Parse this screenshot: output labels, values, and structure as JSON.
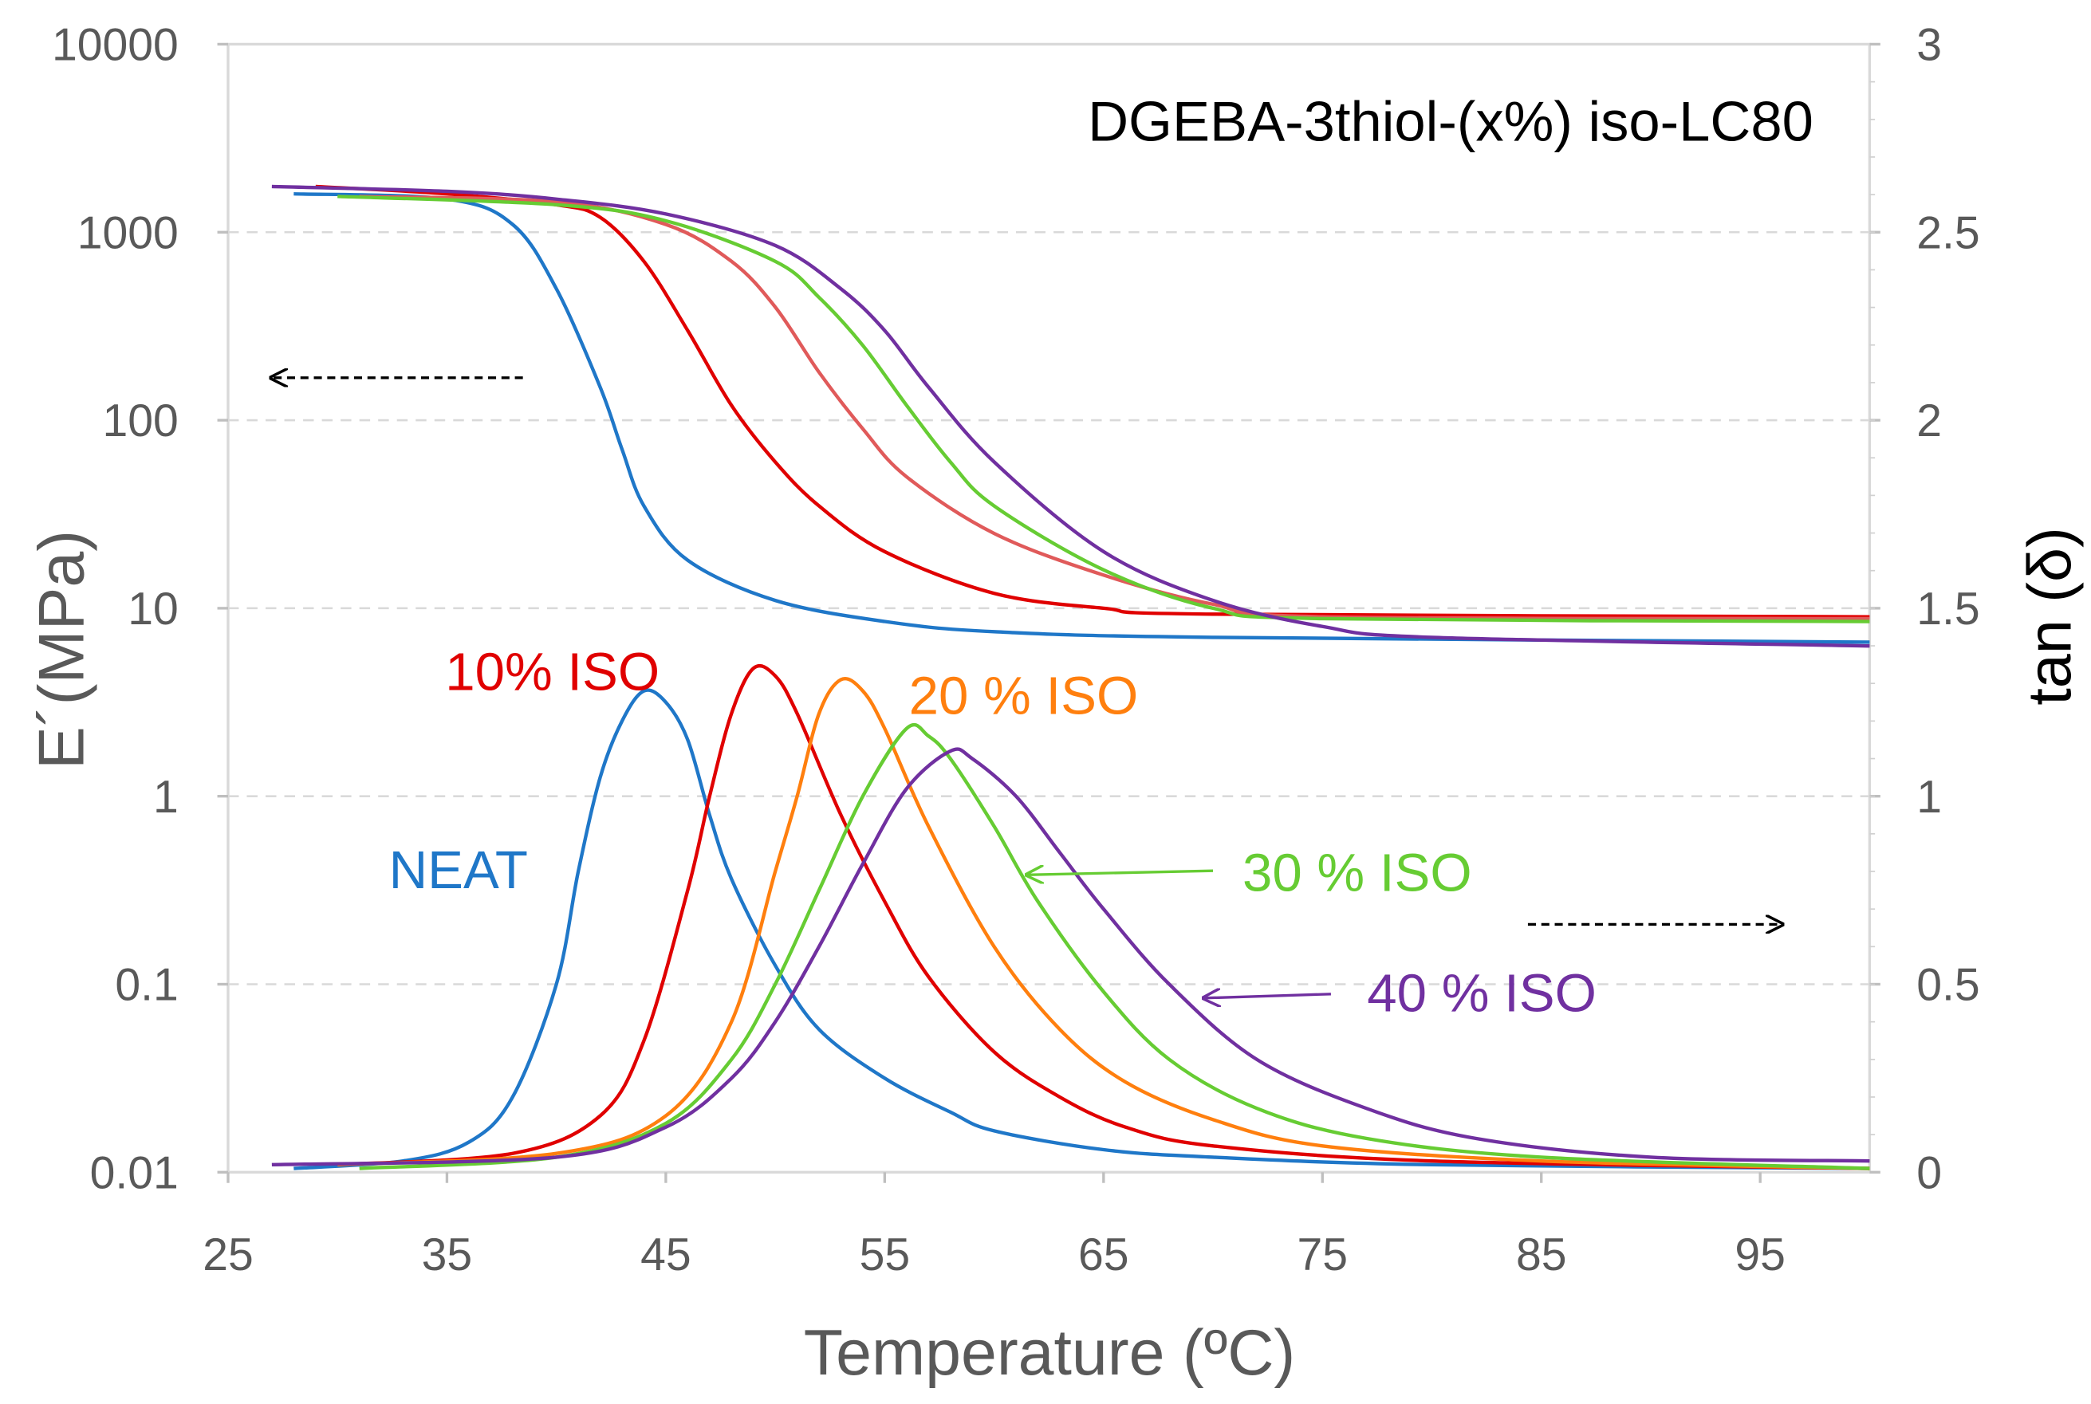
{
  "chart_data": {
    "type": "line",
    "title": "DGEBA-3thiol-(x%) iso-LC80",
    "xlabel": "Temperature (ºC)",
    "ylabel": "E´(MPa)",
    "y2label": "tan (δ)",
    "xlim": [
      25,
      100
    ],
    "ylim": [
      0.01,
      10000
    ],
    "yscale": "log",
    "y2lim": [
      0,
      3
    ],
    "grid": true,
    "xticks": [
      25,
      35,
      45,
      55,
      65,
      75,
      85,
      95
    ],
    "yticks": [
      "10000",
      "1000",
      "100",
      "10",
      "1",
      "0.1",
      "0.01"
    ],
    "y2ticks": [
      "3",
      "2.5",
      "2",
      "1.5",
      "1",
      "0.5",
      "0"
    ],
    "series": [
      {
        "name": "NEAT E'",
        "axis": "left",
        "color": "#1f77c8",
        "x": [
          28,
          35,
          38,
          40,
          42,
          43,
          44,
          46,
          50,
          55,
          60,
          70,
          100
        ],
        "y": [
          1600,
          1500,
          1100,
          500,
          150,
          70,
          35,
          18,
          11,
          8.5,
          7.5,
          7,
          6.6
        ]
      },
      {
        "name": "10% ISO E'",
        "axis": "left",
        "color": "#e00000",
        "x": [
          29,
          35,
          40,
          42,
          44,
          46,
          48,
          50,
          52,
          55,
          60,
          65,
          70,
          100
        ],
        "y": [
          1750,
          1600,
          1400,
          1200,
          700,
          300,
          120,
          60,
          35,
          20,
          12,
          10,
          9.3,
          9
        ]
      },
      {
        "name": "20% ISO E'",
        "axis": "left",
        "color": "#e05a5a",
        "x": [
          31,
          40,
          45,
          48,
          50,
          52,
          54,
          56,
          60,
          65,
          70,
          75,
          100
        ],
        "y": [
          1550,
          1450,
          1100,
          700,
          400,
          180,
          90,
          50,
          25,
          15,
          10.5,
          9,
          8.8
        ]
      },
      {
        "name": "30% ISO E'",
        "axis": "left",
        "color": "#66cc33",
        "x": [
          30,
          40,
          45,
          50,
          52,
          54,
          56,
          58,
          60,
          65,
          70,
          75,
          100
        ],
        "y": [
          1550,
          1400,
          1150,
          700,
          450,
          250,
          120,
          60,
          35,
          16,
          10,
          8.8,
          8.5
        ]
      },
      {
        "name": "40% ISO E'",
        "axis": "left",
        "color": "#7030a0",
        "x": [
          27,
          35,
          40,
          45,
          50,
          53,
          55,
          57,
          60,
          65,
          70,
          75,
          80,
          100
        ],
        "y": [
          1750,
          1650,
          1500,
          1250,
          850,
          500,
          300,
          150,
          60,
          20,
          11,
          8,
          7,
          6.3
        ]
      },
      {
        "name": "NEAT tan δ",
        "axis": "right",
        "color": "#1f77c8",
        "x": [
          28,
          33,
          36,
          38,
          40,
          41,
          42,
          43,
          44,
          45,
          46,
          47,
          48,
          50,
          52,
          55,
          58,
          60,
          65,
          70,
          80,
          100
        ],
        "y": [
          0.01,
          0.03,
          0.08,
          0.2,
          0.5,
          0.8,
          1.05,
          1.2,
          1.28,
          1.25,
          1.15,
          0.95,
          0.78,
          0.55,
          0.38,
          0.25,
          0.16,
          0.11,
          0.06,
          0.04,
          0.02,
          0.01
        ]
      },
      {
        "name": "10% ISO tan δ",
        "axis": "right",
        "color": "#e00000",
        "x": [
          30,
          38,
          42,
          44,
          46,
          47,
          48,
          49,
          50,
          51,
          53,
          55,
          57,
          60,
          63,
          66,
          70,
          80,
          100
        ],
        "y": [
          0.02,
          0.05,
          0.15,
          0.35,
          0.75,
          1.0,
          1.22,
          1.34,
          1.32,
          1.22,
          0.95,
          0.72,
          0.52,
          0.32,
          0.2,
          0.12,
          0.07,
          0.03,
          0.01
        ]
      },
      {
        "name": "20% ISO tan δ",
        "axis": "right",
        "color": "#ff7f0e",
        "x": [
          30,
          40,
          45,
          48,
          50,
          51,
          52,
          53,
          54,
          55,
          57,
          60,
          63,
          66,
          70,
          75,
          85,
          100
        ],
        "y": [
          0.02,
          0.05,
          0.15,
          0.4,
          0.8,
          1.0,
          1.22,
          1.31,
          1.28,
          1.18,
          0.92,
          0.6,
          0.38,
          0.24,
          0.14,
          0.07,
          0.03,
          0.01
        ]
      },
      {
        "name": "30% ISO tan δ",
        "axis": "right",
        "color": "#66cc33",
        "x": [
          31,
          40,
          45,
          48,
          50,
          52,
          54,
          56,
          57,
          58,
          60,
          62,
          65,
          68,
          72,
          77,
          85,
          100
        ],
        "y": [
          0.01,
          0.04,
          0.13,
          0.3,
          0.5,
          0.75,
          1.0,
          1.18,
          1.16,
          1.1,
          0.92,
          0.72,
          0.48,
          0.3,
          0.17,
          0.09,
          0.04,
          0.01
        ]
      },
      {
        "name": "40% ISO tan δ",
        "axis": "right",
        "color": "#7030a0",
        "x": [
          27,
          40,
          45,
          48,
          50,
          52,
          54,
          56,
          58,
          59,
          61,
          63,
          65,
          68,
          72,
          77,
          82,
          90,
          100
        ],
        "y": [
          0.02,
          0.04,
          0.12,
          0.25,
          0.4,
          0.6,
          0.82,
          1.02,
          1.12,
          1.1,
          1.0,
          0.85,
          0.7,
          0.5,
          0.3,
          0.17,
          0.09,
          0.04,
          0.03
        ]
      }
    ],
    "annotations": [
      {
        "text": "NEAT",
        "color": "#1f77c8"
      },
      {
        "text": "10% ISO",
        "color": "#e00000"
      },
      {
        "text": "20 % ISO",
        "color": "#ff7f0e"
      },
      {
        "text": "30 % ISO",
        "color": "#66cc33"
      },
      {
        "text": "40 % ISO",
        "color": "#7030a0"
      }
    ]
  }
}
